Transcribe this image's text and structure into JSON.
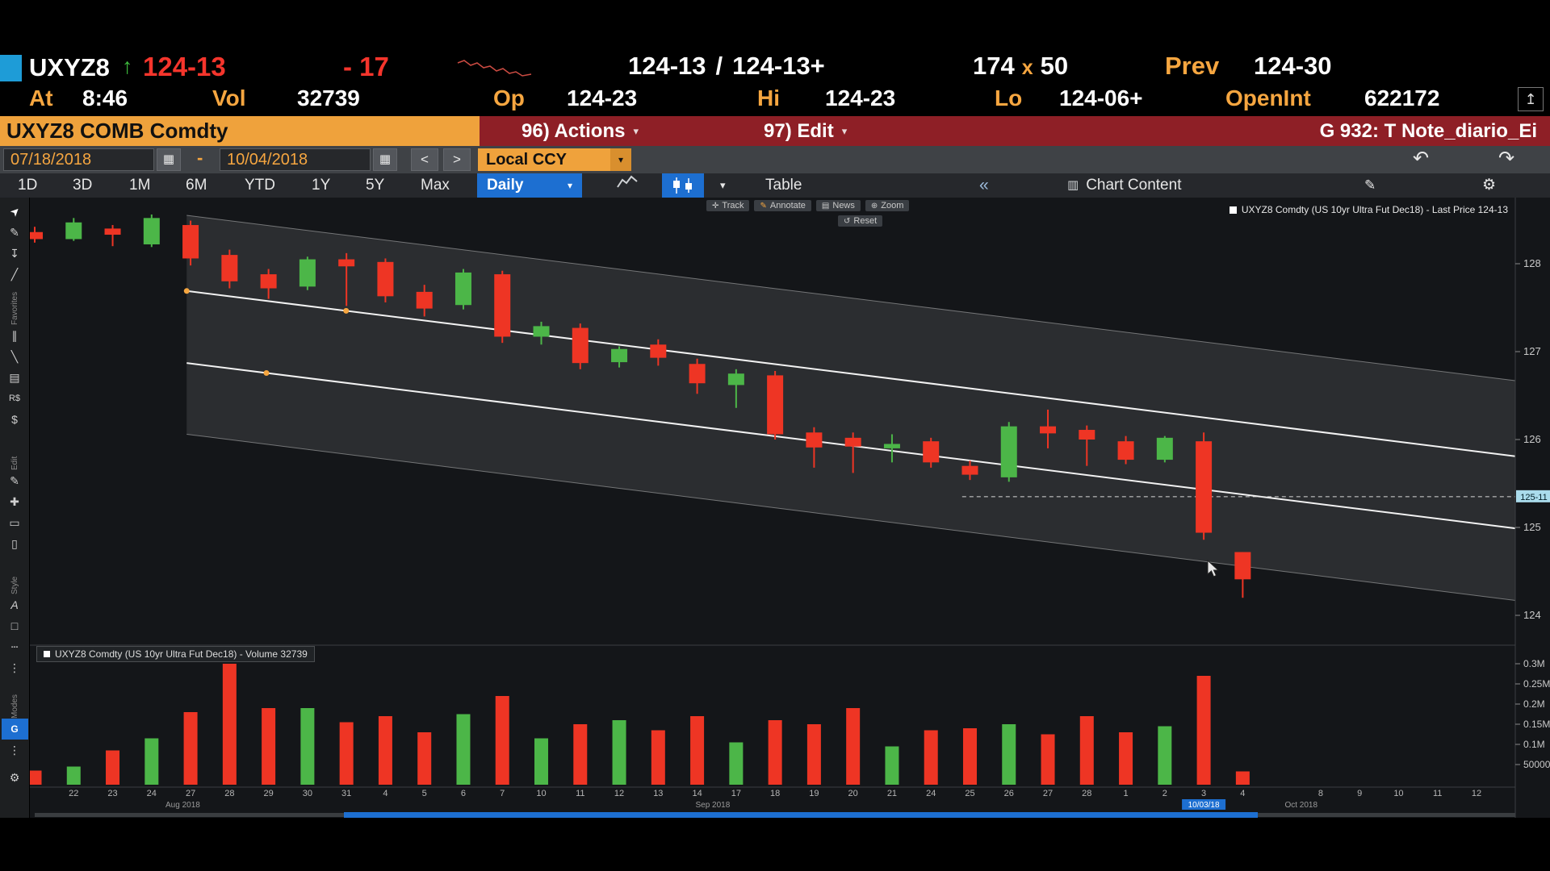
{
  "colors": {
    "amber": "#f6a640",
    "up": "#4cb648",
    "down": "#ee3524",
    "blue": "#1d6fd1",
    "red_bar": "#8e1f26",
    "cyan_square": "#1e9cd7",
    "tag_bg": "#aadcec"
  },
  "icons": {
    "cursor": "➤",
    "pencil": "✎",
    "dropper": "↧",
    "trendline": "╱",
    "channel": "∥",
    "ray": "╲",
    "fib": "▤",
    "regression": "R$",
    "money": "$",
    "move": "✚",
    "eraser": "▭",
    "clipboard": "▯",
    "text": "A",
    "rect": "□",
    "dashes": "┄",
    "dots": "⋮",
    "compass": "G",
    "gear": "⚙",
    "calendar": "▦",
    "caret_down": "▾",
    "undo": "↶",
    "redo": "↷",
    "chevron_left": "<",
    "chevron_right": ">",
    "collapse": "«",
    "track": "✛",
    "annotate": "✎",
    "news": "▤",
    "zoom": "⊕",
    "reset": "↺",
    "chart_content": "▥",
    "note": "✎",
    "export": "↥",
    "up_arrow": "↑"
  },
  "header": {
    "ticker": "UXYZ8",
    "last": "124-13",
    "change": "- 17",
    "bid": "124-13",
    "slash": "/",
    "ask": "124-13+",
    "bid_size": "174",
    "x": "x",
    "ask_size": "50",
    "prev_label": "Prev",
    "prev": "124-30",
    "at_label": "At",
    "at": "8:46",
    "vol_label": "Vol",
    "vol": "32739",
    "op_label": "Op",
    "op": "124-23",
    "hi_label": "Hi",
    "hi": "124-23",
    "lo_label": "Lo",
    "lo": "124-06+",
    "oi_label": "OpenInt",
    "oi": "622172"
  },
  "title_bar": {
    "security": "UXYZ8 COMB Comdty",
    "actions": "96) Actions",
    "edit": "97) Edit",
    "right": "G 932: T Note_diario_Ei"
  },
  "controls": {
    "date_from": "07/18/2018",
    "dash": "-",
    "date_to": "10/04/2018",
    "ccy": "Local CCY",
    "periods": [
      "1D",
      "3D",
      "1M",
      "6M",
      "YTD",
      "1Y",
      "5Y",
      "Max"
    ],
    "frequency": "Daily",
    "table": "Table",
    "chart_content": "Chart Content"
  },
  "sidebar": {
    "groups": [
      "Favorites",
      "Edit",
      "Style",
      "Modes"
    ]
  },
  "overlay": {
    "tools": [
      "Track",
      "Annotate",
      "News",
      "Zoom"
    ],
    "reset": "Reset",
    "price_legend": "UXYZ8 Comdty (US 10yr Ultra Fut Dec18) - Last Price 124-13",
    "volume_legend": "UXYZ8 Comdty (US 10yr Ultra Fut Dec18) - Volume 32739",
    "date_tag": "10/03/18"
  },
  "chart_data": {
    "type": "candlestick",
    "title": "UXYZ8 Comdty (US 10yr Ultra Fut Dec18)",
    "ylim": [
      123.85,
      128.75
    ],
    "y_ticks": [
      {
        "label": "128",
        "value": 128
      },
      {
        "label": "127",
        "value": 127
      },
      {
        "label": "126",
        "value": 126
      },
      {
        "label": "125",
        "value": 125
      },
      {
        "label": "124",
        "value": 124
      }
    ],
    "volume_ticks": [
      {
        "label": "0.3M",
        "value": 0.3
      },
      {
        "label": "0.25M",
        "value": 0.25
      },
      {
        "label": "0.2M",
        "value": 0.2
      },
      {
        "label": "0.15M",
        "value": 0.15
      },
      {
        "label": "0.1M",
        "value": 0.1
      },
      {
        "label": "50000",
        "value": 0.05
      }
    ],
    "candles": [
      [
        128.36,
        128.42,
        128.24,
        128.28
      ],
      [
        128.28,
        128.52,
        128.26,
        128.47
      ],
      [
        128.4,
        128.44,
        128.2,
        128.33
      ],
      [
        128.22,
        128.56,
        128.19,
        128.52
      ],
      [
        128.44,
        128.49,
        127.98,
        128.06
      ],
      [
        128.1,
        128.16,
        127.72,
        127.8
      ],
      [
        127.88,
        127.94,
        127.6,
        127.72
      ],
      [
        127.74,
        128.08,
        127.7,
        128.05
      ],
      [
        128.05,
        128.12,
        127.52,
        127.97
      ],
      [
        128.02,
        128.06,
        127.56,
        127.63
      ],
      [
        127.68,
        127.76,
        127.4,
        127.49
      ],
      [
        127.53,
        127.94,
        127.48,
        127.9
      ],
      [
        127.88,
        127.92,
        127.1,
        127.17
      ],
      [
        127.17,
        127.34,
        127.08,
        127.29
      ],
      [
        127.27,
        127.32,
        126.8,
        126.87
      ],
      [
        126.88,
        127.06,
        126.82,
        127.03
      ],
      [
        127.08,
        127.14,
        126.84,
        126.93
      ],
      [
        126.86,
        126.92,
        126.52,
        126.64
      ],
      [
        126.62,
        126.8,
        126.36,
        126.75
      ],
      [
        126.73,
        126.78,
        126.0,
        126.06
      ],
      [
        126.08,
        126.14,
        125.68,
        125.91
      ],
      [
        126.02,
        126.08,
        125.62,
        125.92
      ],
      [
        125.9,
        126.06,
        125.74,
        125.95
      ],
      [
        125.98,
        126.02,
        125.68,
        125.74
      ],
      [
        125.7,
        125.76,
        125.54,
        125.6
      ],
      [
        125.57,
        126.2,
        125.52,
        126.15
      ],
      [
        126.15,
        126.34,
        125.9,
        126.07
      ],
      [
        126.11,
        126.16,
        125.7,
        126.0
      ],
      [
        125.98,
        126.04,
        125.72,
        125.77
      ],
      [
        125.77,
        126.04,
        125.74,
        126.02
      ],
      [
        125.98,
        126.08,
        124.86,
        124.94
      ],
      [
        124.72,
        124.72,
        124.2,
        124.41
      ]
    ],
    "volumes": [
      0.035,
      0.045,
      0.085,
      0.115,
      0.18,
      0.3,
      0.19,
      0.19,
      0.155,
      0.17,
      0.13,
      0.175,
      0.22,
      0.115,
      0.15,
      0.16,
      0.135,
      0.17,
      0.105,
      0.16,
      0.15,
      0.19,
      0.095,
      0.135,
      0.14,
      0.15,
      0.125,
      0.17,
      0.13,
      0.145,
      0.27,
      0.033
    ],
    "x_labels": [
      {
        "i": 1,
        "t": "22"
      },
      {
        "i": 2,
        "t": "23"
      },
      {
        "i": 3,
        "t": "24"
      },
      {
        "i": 4,
        "t": "27"
      },
      {
        "i": 5,
        "t": "28"
      },
      {
        "i": 6,
        "t": "29"
      },
      {
        "i": 7,
        "t": "30"
      },
      {
        "i": 8,
        "t": "31"
      },
      {
        "i": 9,
        "t": "4"
      },
      {
        "i": 10,
        "t": "5"
      },
      {
        "i": 11,
        "t": "6"
      },
      {
        "i": 12,
        "t": "7"
      },
      {
        "i": 13,
        "t": "10"
      },
      {
        "i": 14,
        "t": "11"
      },
      {
        "i": 15,
        "t": "12"
      },
      {
        "i": 16,
        "t": "13"
      },
      {
        "i": 17,
        "t": "14"
      },
      {
        "i": 18,
        "t": "17"
      },
      {
        "i": 19,
        "t": "18"
      },
      {
        "i": 20,
        "t": "19"
      },
      {
        "i": 21,
        "t": "20"
      },
      {
        "i": 22,
        "t": "21"
      },
      {
        "i": 23,
        "t": "24"
      },
      {
        "i": 24,
        "t": "25"
      },
      {
        "i": 25,
        "t": "26"
      },
      {
        "i": 26,
        "t": "27"
      },
      {
        "i": 27,
        "t": "28"
      },
      {
        "i": 28,
        "t": "1"
      },
      {
        "i": 29,
        "t": "2"
      },
      {
        "i": 30,
        "t": "3"
      },
      {
        "i": 31,
        "t": "4"
      },
      {
        "i": 33,
        "t": "8"
      },
      {
        "i": 34,
        "t": "9"
      },
      {
        "i": 35,
        "t": "10"
      },
      {
        "i": 36,
        "t": "11"
      },
      {
        "i": 37,
        "t": "12"
      }
    ],
    "months": [
      {
        "i": 3.8,
        "t": "Aug 2018"
      },
      {
        "i": 17.4,
        "t": "Sep 2018"
      },
      {
        "i": 32.5,
        "t": "Oct 2018"
      }
    ],
    "highlight_index": 30,
    "hline": {
      "price": 125.35,
      "label": "125-11",
      "start_index": 23.8
    },
    "channel": {
      "start_index": 3.9,
      "lines": [
        [
          128.55,
          126.67
        ],
        [
          127.69,
          125.81
        ],
        [
          126.87,
          124.99
        ],
        [
          126.06,
          124.17
        ]
      ],
      "handles": [
        {
          "line": 1,
          "t": 0.0
        },
        {
          "line": 1,
          "t": 0.12
        },
        {
          "line": 2,
          "t": 0.06
        }
      ]
    }
  }
}
